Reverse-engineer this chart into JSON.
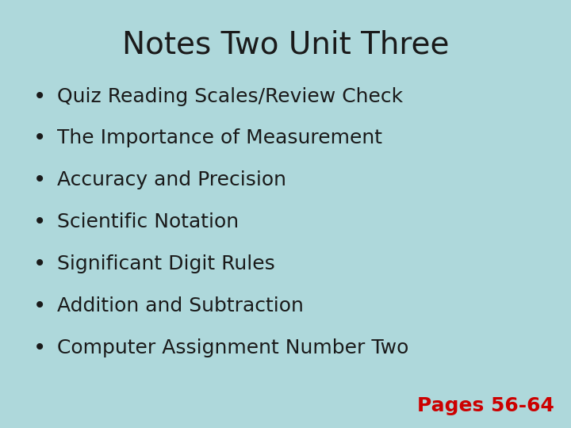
{
  "title": "Notes Two Unit Three",
  "background_color": "#aed8db",
  "title_color": "#1a1a1a",
  "title_fontsize": 28,
  "bullet_items": [
    "Quiz Reading Scales/Review Check",
    "The Importance of Measurement",
    "Accuracy and Precision",
    "Scientific Notation",
    "Significant Digit Rules",
    "Addition and Subtraction",
    "Computer Assignment Number Two"
  ],
  "bullet_color": "#1a1a1a",
  "bullet_fontsize": 18,
  "bullet_font": "DejaVu Sans",
  "pages_text": "Pages 56-64",
  "pages_color": "#cc0000",
  "pages_fontsize": 18
}
